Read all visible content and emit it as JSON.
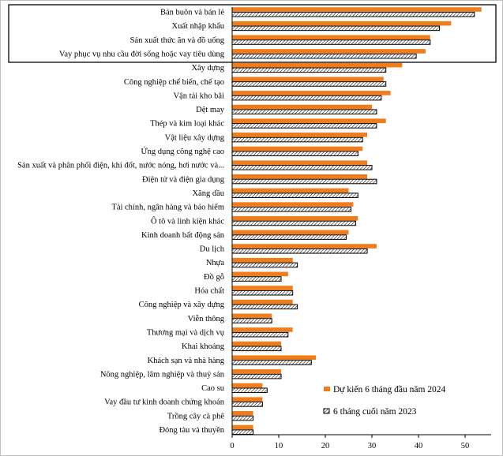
{
  "chart_data": {
    "type": "bar",
    "orientation": "horizontal",
    "categories": [
      "Bán buôn và bán lẻ",
      "Xuất nhập khẩu",
      "Sản xuất thức ăn và đồ uống",
      "Vay phục vụ nhu cầu đời sống hoặc vay tiêu dùng",
      "Xây dựng",
      "Công nghiệp chế biến, chế tạo",
      "Vận tải kho bãi",
      "Dệt may",
      "Thép và kim loại khác",
      "Vật liệu xây dựng",
      "Ứng dụng công nghệ cao",
      "Sản xuất và phân phối điện, khí đốt, nước nóng, hơi nước và...",
      "Điện tử và điện gia dụng",
      "Xăng dầu",
      "Tài chính, ngân hàng và bảo hiểm",
      "Ô tô và linh kiện khác",
      "Kinh doanh bất động sản",
      "Du lịch",
      "Nhựa",
      "Đồ gỗ",
      "Hóa chất",
      "Công nghiệp và xây dựng",
      "Viễn thông",
      "Thương mại và dịch vụ",
      "Khai khoáng",
      "Khách sạn và nhà hàng",
      "Nông nghiệp, lâm nghiệp và thuỷ sản",
      "Cao su",
      "Vay đầu tư kinh doanh chứng khoán",
      "Trồng cây cà phê",
      "Đóng tàu và thuyền"
    ],
    "series": [
      {
        "name": "Dự kiến 6 tháng đầu năm 2024",
        "style": "solid",
        "color": "#f07c1c",
        "values": [
          53.5,
          47,
          42.5,
          41.5,
          36.5,
          32.5,
          34,
          30,
          33,
          29,
          28,
          29,
          29,
          25,
          26,
          27,
          25,
          31,
          13,
          12,
          13,
          13,
          8.5,
          13,
          10.5,
          18,
          10.5,
          6.5,
          6.5,
          4.5,
          4.5
        ]
      },
      {
        "name": "6 tháng cuối năm 2023",
        "style": "hatched",
        "color": "#000000",
        "values": [
          52,
          44.5,
          42.5,
          39.5,
          33,
          33,
          32,
          31,
          31,
          28,
          27,
          30,
          31,
          27,
          25.5,
          26.5,
          24.5,
          29,
          14,
          10.5,
          13,
          14,
          8.5,
          12,
          10.5,
          17,
          10.5,
          7.5,
          6.5,
          4.5,
          4.5
        ]
      }
    ],
    "xlim": [
      0,
      55
    ],
    "xticks": [
      "0",
      "10",
      "20",
      "30",
      "40",
      "50"
    ],
    "xtick_values": [
      0,
      10,
      20,
      30,
      40,
      50
    ],
    "highlighted_top_n": 4,
    "legend_position": "bottom-right",
    "title": "",
    "xlabel": "",
    "ylabel": ""
  }
}
